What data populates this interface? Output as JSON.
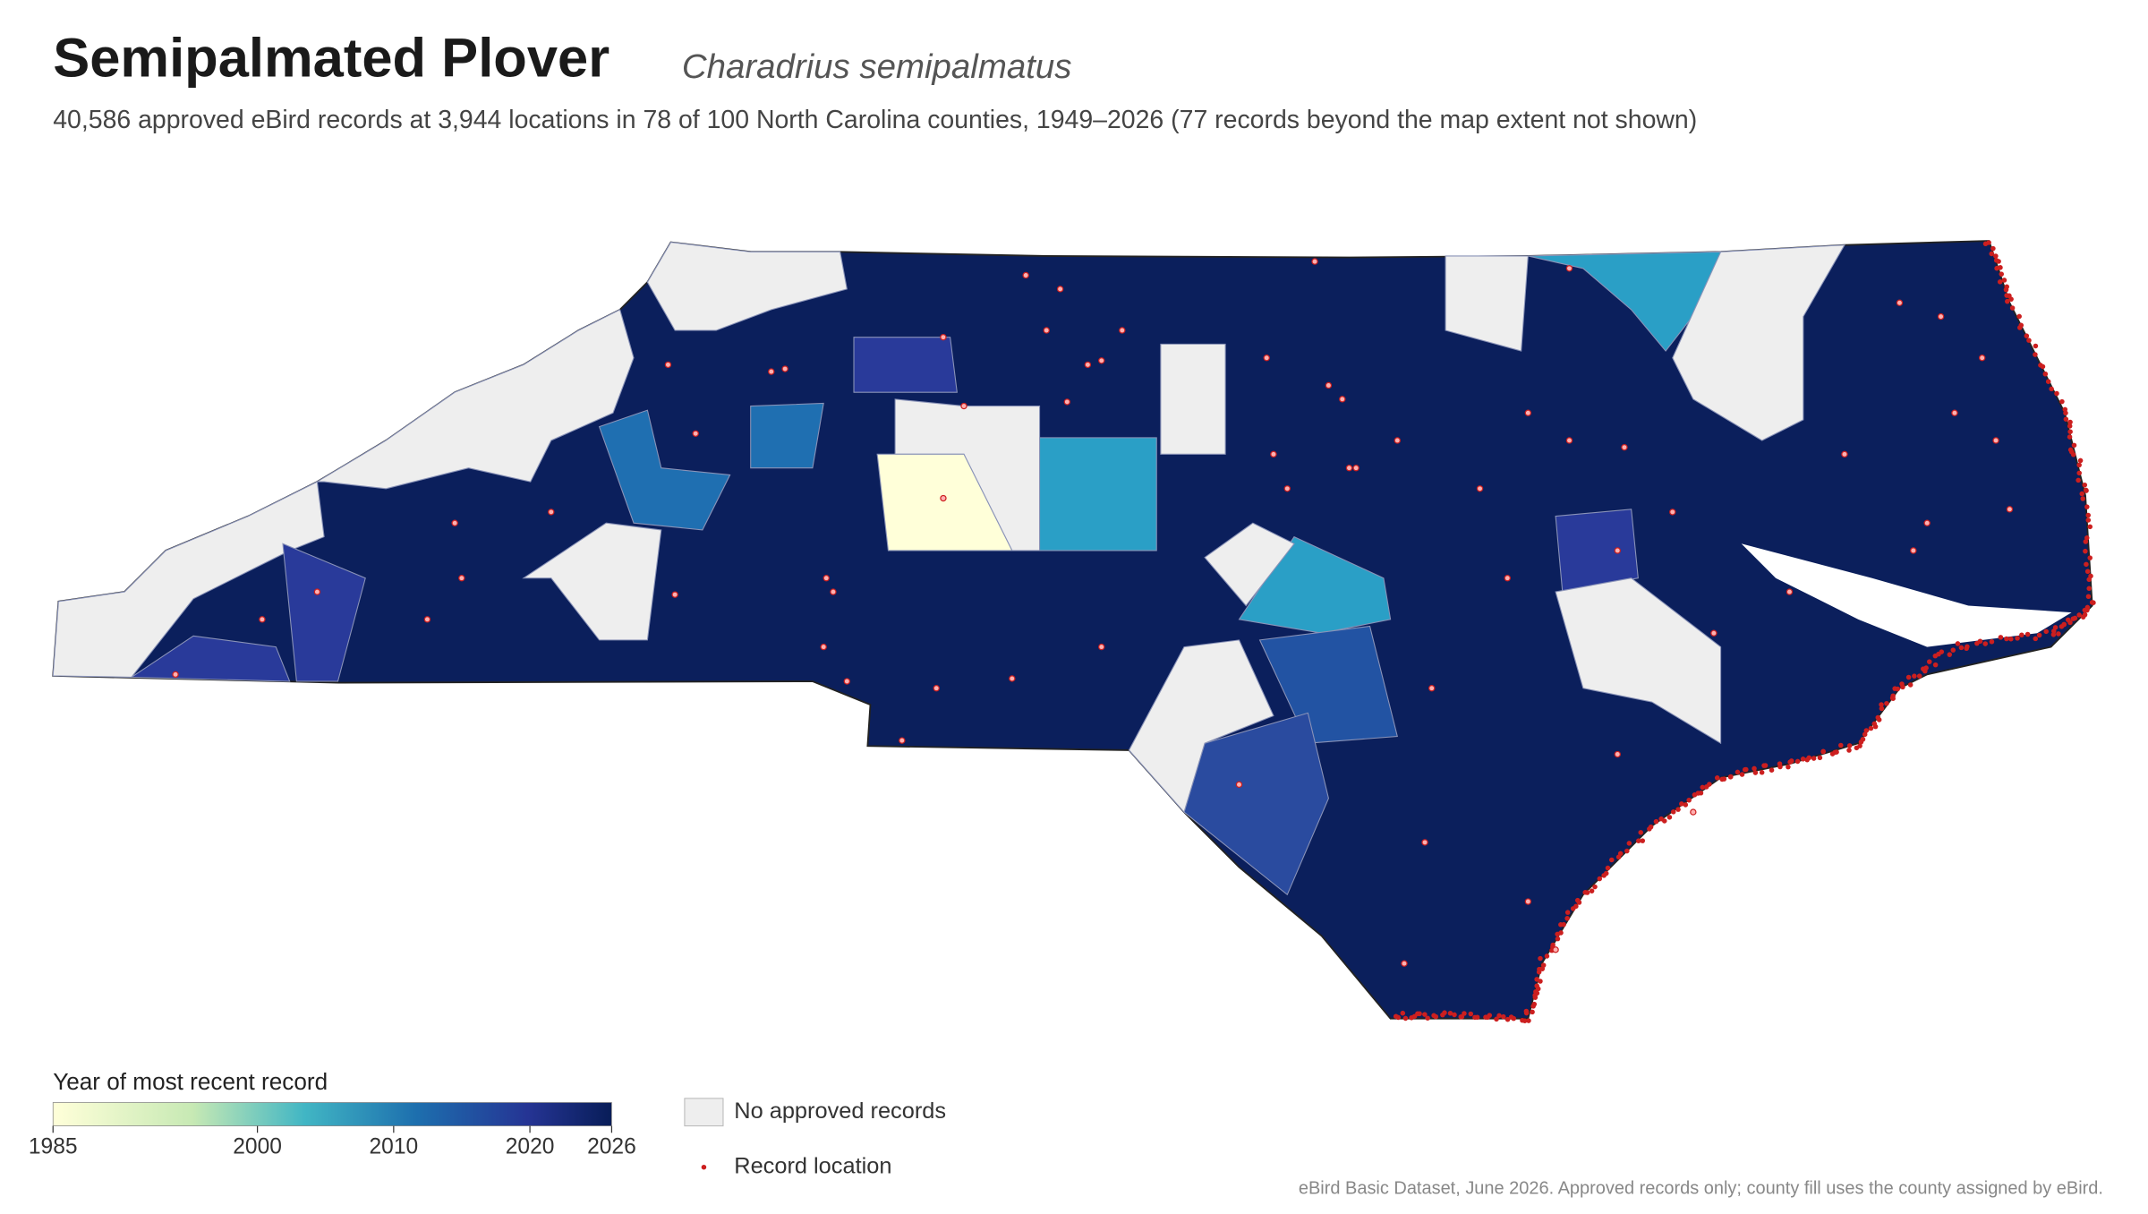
{
  "header": {
    "title": "Semipalmated Plover",
    "scientific_name": "Charadrius semipalmatus",
    "description": "40,586 approved eBird records at 3,944 locations in 78 of 100 North Carolina counties, 1949–2026 (77 records beyond the map extent not shown)"
  },
  "legend": {
    "colorbar": {
      "title": "Year of most recent record",
      "range": [
        1985,
        2026
      ],
      "ticks": [
        1985,
        2000,
        2010,
        2020,
        2026
      ]
    },
    "items": [
      {
        "label": "No approved records"
      },
      {
        "label": "Record location"
      }
    ]
  },
  "source": "eBird Basic Dataset, June 2026. Approved records only; county fill uses the county assigned by eBird."
}
